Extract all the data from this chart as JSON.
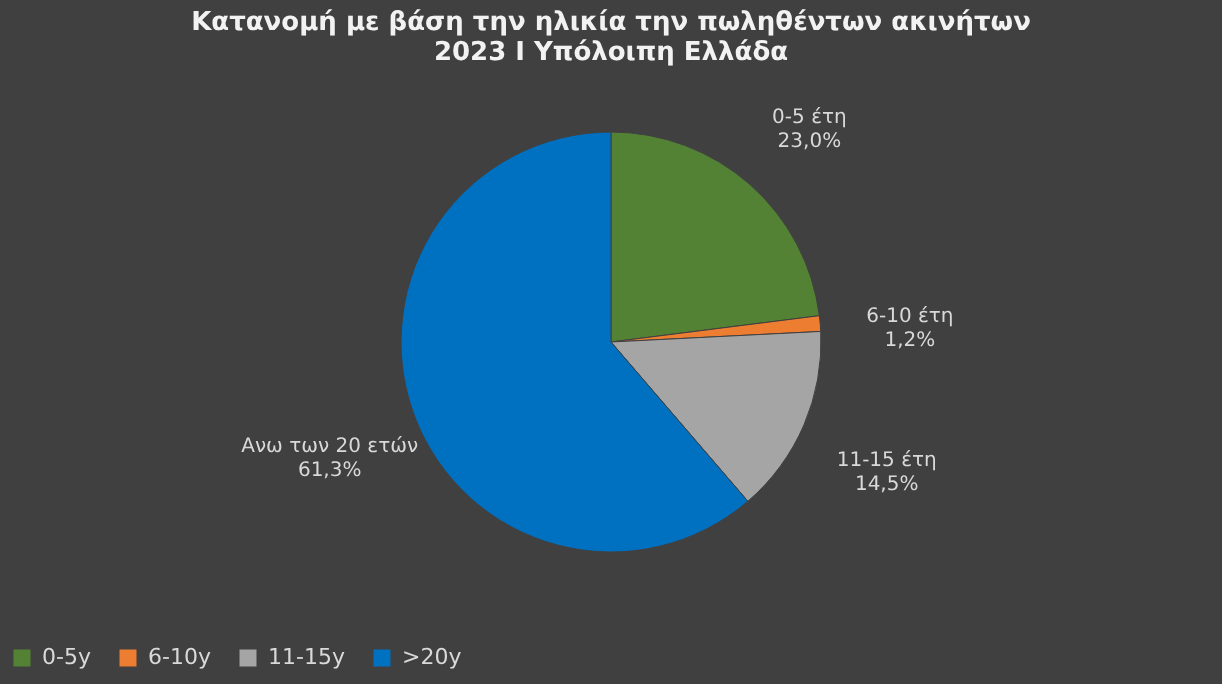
{
  "chart_data": {
    "type": "pie",
    "title": "Κατανομή με βάση την ηλικία την πωληθέντων ακινήτων\n2023 Ι Υπόλοιπη Ελλάδα",
    "categories": [
      "0-5y",
      "6-10y",
      "11-15y",
      ">20y"
    ],
    "values": [
      23.0,
      1.2,
      14.5,
      61.3
    ],
    "colors": [
      "#548235",
      "#ed7d31",
      "#a5a5a5",
      "#0070c0"
    ],
    "value_labels": [
      "23,0%",
      "1,2%",
      "14,5%",
      "61,3%"
    ],
    "annotations": [
      "0-5 έτη",
      "6-10 έτη",
      "11-15 έτη",
      "Ανω των 20 ετών"
    ],
    "legend": "bottom"
  }
}
